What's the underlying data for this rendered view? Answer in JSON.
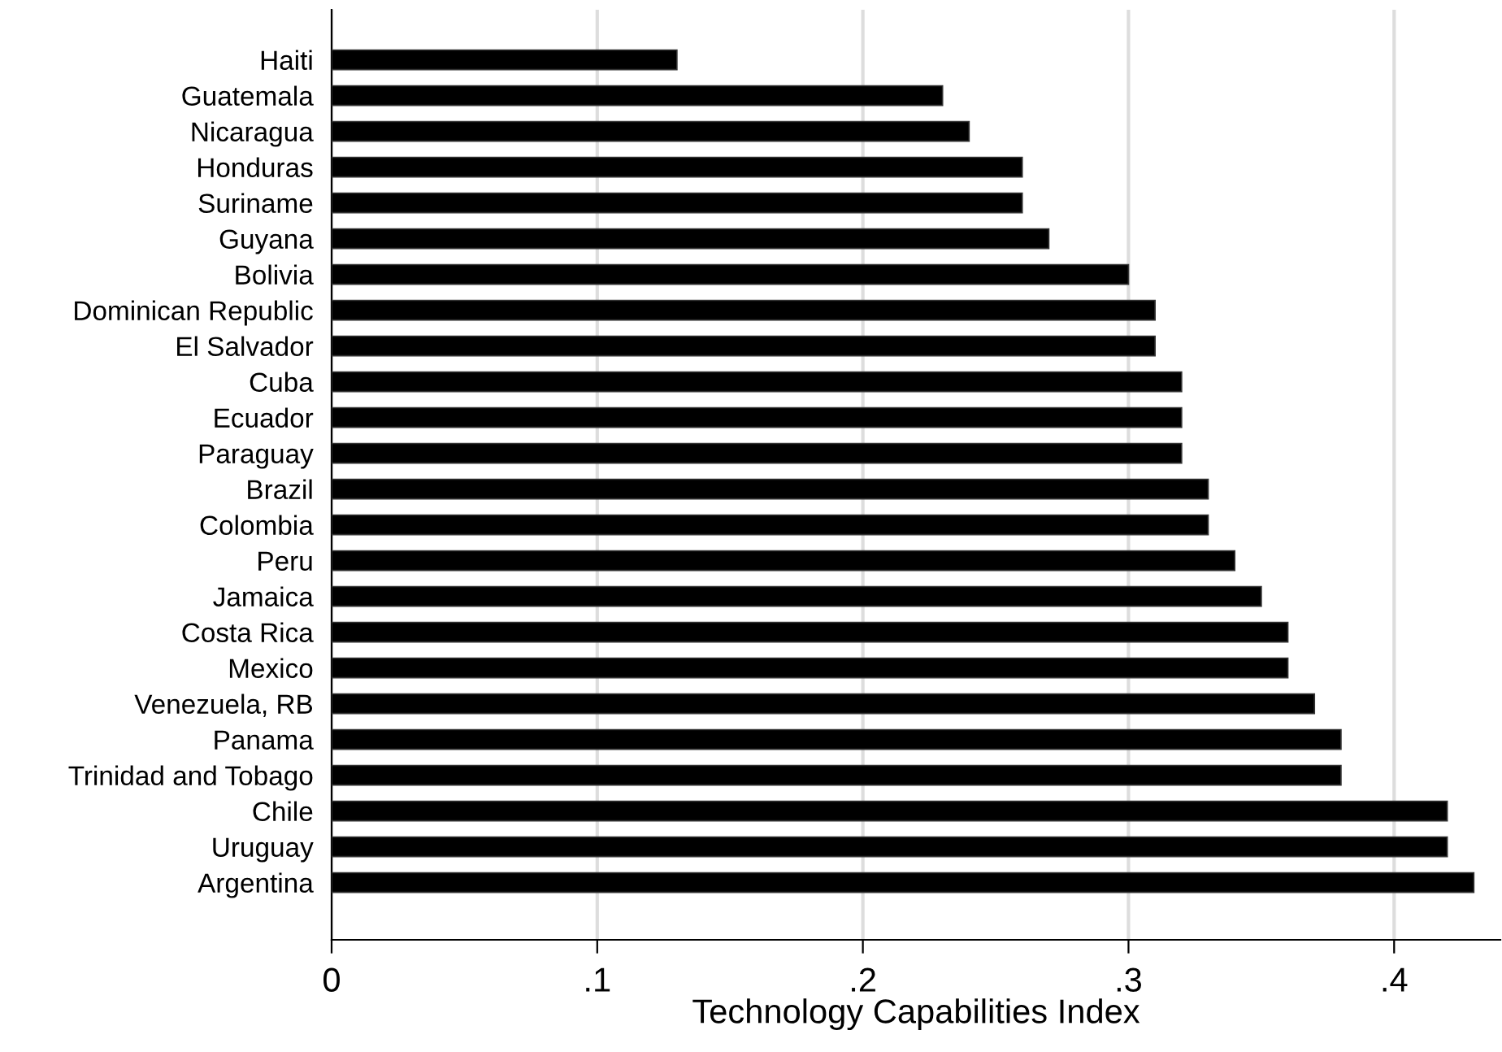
{
  "chart_data": {
    "type": "bar",
    "orientation": "horizontal",
    "xlabel": "Technology Capabilities Index",
    "categories": [
      "Haiti",
      "Guatemala",
      "Nicaragua",
      "Honduras",
      "Suriname",
      "Guyana",
      "Bolivia",
      "Dominican Republic",
      "El Salvador",
      "Cuba",
      "Ecuador",
      "Paraguay",
      "Brazil",
      "Colombia",
      "Peru",
      "Jamaica",
      "Costa Rica",
      "Mexico",
      "Venezuela, RB",
      "Panama",
      "Trinidad and Tobago",
      "Chile",
      "Uruguay",
      "Argentina"
    ],
    "values": [
      0.13,
      0.23,
      0.24,
      0.26,
      0.26,
      0.27,
      0.3,
      0.31,
      0.31,
      0.32,
      0.32,
      0.32,
      0.33,
      0.33,
      0.34,
      0.35,
      0.36,
      0.36,
      0.37,
      0.38,
      0.38,
      0.42,
      0.42,
      0.43
    ],
    "color": "#000000",
    "xlim": [
      0,
      0.44
    ],
    "xticks": [
      0,
      {
        "value": 0.1,
        "label": ".1"
      },
      {
        "value": 0.2,
        "label": ".2"
      },
      {
        "value": 0.3,
        "label": ".3"
      },
      {
        "value": 0.4,
        "label": ".4"
      }
    ],
    "grid": "x"
  }
}
